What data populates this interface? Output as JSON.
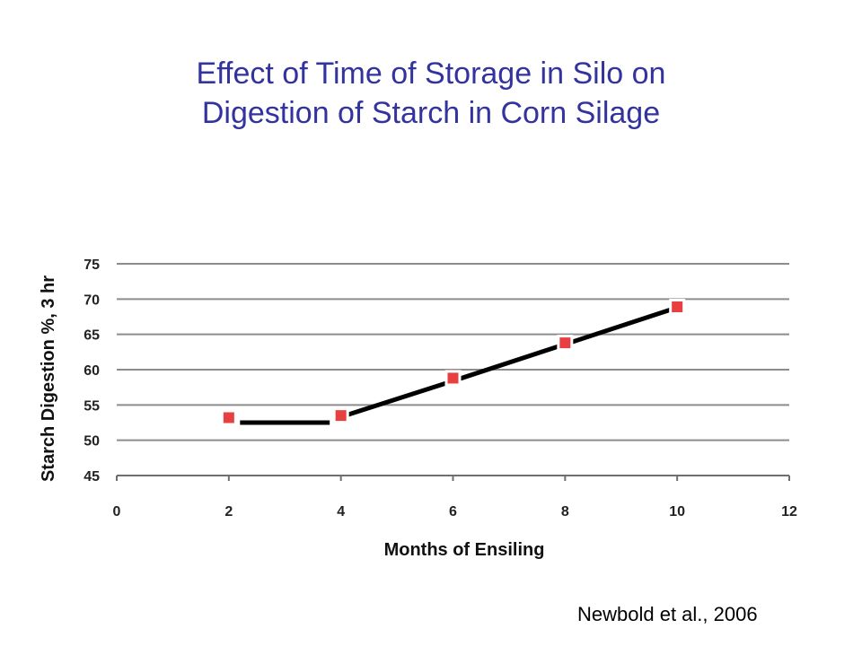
{
  "slide": {
    "title_line1": "Effect of Time of Storage in Silo on",
    "title_line2": "Digestion of Starch in Corn Silage",
    "citation": "Newbold et al., 2006"
  },
  "colors": {
    "title": "#3333a0",
    "marker": "#e84040",
    "line": "#000000",
    "grid": "#8c8c8c"
  },
  "chart_data": {
    "type": "scatter",
    "title": "",
    "xlabel": "Months of Ensiling",
    "ylabel": "Starch Digestion %, 3 hr",
    "xlim": [
      0,
      12
    ],
    "ylim": [
      45,
      75
    ],
    "xticks": [
      0,
      2,
      4,
      6,
      8,
      10,
      12
    ],
    "yticks": [
      45,
      50,
      55,
      60,
      65,
      70,
      75
    ],
    "grid": "horizontal",
    "legend": "none",
    "series": [
      {
        "x": [
          2,
          4,
          6,
          8,
          10
        ],
        "values": [
          53.2,
          53.5,
          58.8,
          63.8,
          68.9
        ]
      }
    ],
    "trendline": {
      "x": [
        2.2,
        3.8,
        4.0,
        6.0,
        8.0,
        10.0
      ],
      "values": [
        52.5,
        52.5,
        53.3,
        58.4,
        63.6,
        68.8
      ]
    }
  }
}
